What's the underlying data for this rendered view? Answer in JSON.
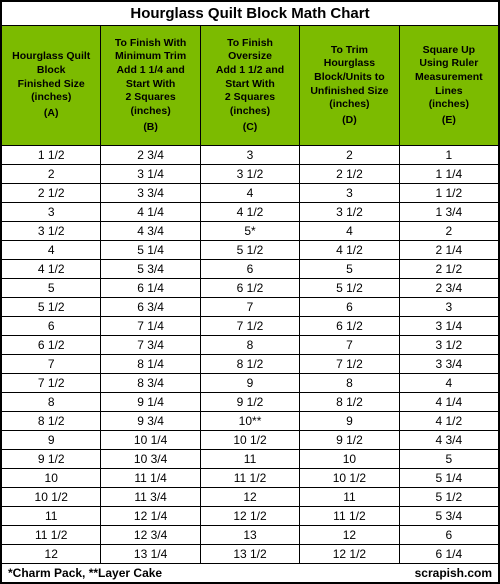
{
  "title": "Hourglass Quilt Block Math Chart",
  "columns": [
    {
      "text": "Hourglass Quilt\nBlock\nFinished Size\n(inches)",
      "letter": "(A)"
    },
    {
      "text": "To Finish With\nMinimum Trim\nAdd 1 1/4 and\nStart With\n2 Squares\n(inches)",
      "letter": "(B)"
    },
    {
      "text": "To Finish\nOversize\nAdd 1 1/2 and\nStart With\n2 Squares\n(inches)",
      "letter": "(C)"
    },
    {
      "text": "To Trim\nHourglass\nBlock/Units to\nUnfinished Size\n(inches)",
      "letter": "(D)"
    },
    {
      "text": "Square Up\nUsing Ruler\nMeasurement\nLines\n(inches)",
      "letter": "(E)"
    }
  ],
  "rows": [
    [
      "1 1/2",
      "2 3/4",
      "3",
      "2",
      "1"
    ],
    [
      "2",
      "3 1/4",
      "3 1/2",
      "2 1/2",
      "1 1/4"
    ],
    [
      "2 1/2",
      "3 3/4",
      "4",
      "3",
      "1 1/2"
    ],
    [
      "3",
      "4 1/4",
      "4 1/2",
      "3 1/2",
      "1 3/4"
    ],
    [
      "3 1/2",
      "4 3/4",
      "5*",
      "4",
      "2"
    ],
    [
      "4",
      "5 1/4",
      "5 1/2",
      "4 1/2",
      "2 1/4"
    ],
    [
      "4 1/2",
      "5 3/4",
      "6",
      "5",
      "2 1/2"
    ],
    [
      "5",
      "6 1/4",
      "6 1/2",
      "5 1/2",
      "2 3/4"
    ],
    [
      "5 1/2",
      "6 3/4",
      "7",
      "6",
      "3"
    ],
    [
      "6",
      "7 1/4",
      "7 1/2",
      "6 1/2",
      "3 1/4"
    ],
    [
      "6 1/2",
      "7 3/4",
      "8",
      "7",
      "3 1/2"
    ],
    [
      "7",
      "8 1/4",
      "8 1/2",
      "7 1/2",
      "3 3/4"
    ],
    [
      "7 1/2",
      "8 3/4",
      "9",
      "8",
      "4"
    ],
    [
      "8",
      "9 1/4",
      "9 1/2",
      "8 1/2",
      "4 1/4"
    ],
    [
      "8 1/2",
      "9 3/4",
      "10**",
      "9",
      "4 1/2"
    ],
    [
      "9",
      "10 1/4",
      "10 1/2",
      "9 1/2",
      "4 3/4"
    ],
    [
      "9 1/2",
      "10 3/4",
      "11",
      "10",
      "5"
    ],
    [
      "10",
      "11 1/4",
      "11 1/2",
      "10 1/2",
      "5 1/4"
    ],
    [
      "10 1/2",
      "11 3/4",
      "12",
      "11",
      "5 1/2"
    ],
    [
      "11",
      "12 1/4",
      "12 1/2",
      "11 1/2",
      "5 3/4"
    ],
    [
      "11 1/2",
      "12 3/4",
      "13",
      "12",
      "6"
    ],
    [
      "12",
      "13 1/4",
      "13 1/2",
      "12 1/2",
      "6 1/4"
    ]
  ],
  "footer_left": "*Charm Pack, **Layer Cake",
  "footer_right": "scrapish.com",
  "colors": {
    "header_bg": "#7cbb00",
    "border": "#000000",
    "background": "#ffffff"
  },
  "fonts": {
    "title_size": 15,
    "header_size": 10.5,
    "data_size": 12,
    "footer_size": 12
  }
}
